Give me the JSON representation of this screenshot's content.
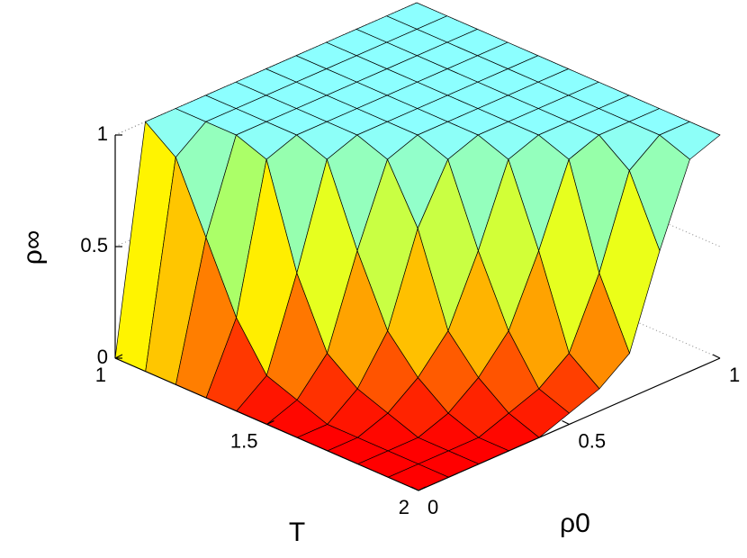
{
  "chart_data": {
    "type": "surface",
    "xlabel": "T",
    "ylabel": "ρ0",
    "zlabel": "ρ∞",
    "x": [
      1,
      1.1,
      1.2,
      1.3,
      1.4,
      1.5,
      1.6,
      1.7,
      1.8,
      1.9,
      2
    ],
    "y": [
      0,
      0.1,
      0.2,
      0.3,
      0.4,
      0.5,
      0.6,
      0.7,
      0.8,
      0.9,
      1
    ],
    "z": [
      [
        0,
        1,
        1,
        1,
        1,
        1,
        1,
        1,
        1,
        1,
        1
      ],
      [
        0,
        0.9,
        1,
        1,
        1,
        1,
        1,
        1,
        1,
        1,
        1
      ],
      [
        0,
        0.6,
        1,
        1,
        1,
        1,
        1,
        1,
        1,
        1,
        1
      ],
      [
        0,
        0.3,
        0.95,
        1,
        1,
        1,
        1,
        1,
        1,
        1,
        1
      ],
      [
        0,
        0.1,
        0.5,
        0.95,
        1,
        1,
        1,
        1,
        1,
        1,
        1
      ],
      [
        0,
        0.05,
        0.2,
        0.6,
        0.95,
        1,
        1,
        1,
        1,
        1,
        1
      ],
      [
        0,
        0,
        0.1,
        0.3,
        0.7,
        0.95,
        1,
        1,
        1,
        1,
        1
      ],
      [
        0,
        0,
        0.05,
        0.15,
        0.3,
        0.6,
        0.95,
        1,
        1,
        1,
        1
      ],
      [
        0,
        0,
        0,
        0.05,
        0.15,
        0.3,
        0.6,
        0.95,
        1,
        1,
        1
      ],
      [
        0,
        0,
        0,
        0,
        0.05,
        0.1,
        0.2,
        0.5,
        0.9,
        1,
        1
      ],
      [
        0,
        0,
        0,
        0,
        0,
        0.05,
        0.1,
        0.2,
        0.6,
        0.95,
        1
      ]
    ],
    "xlim": [
      1,
      2
    ],
    "xticks": [
      1,
      1.5,
      2
    ],
    "ylim": [
      0,
      1
    ],
    "yticks": [
      0,
      0.5,
      1
    ],
    "zlim": [
      0,
      1
    ],
    "zticks": [
      0,
      0.5,
      1
    ],
    "colormap": [
      "#ff0000",
      "#ff8c00",
      "#ffff00",
      "#9cff7a",
      "#8cffff"
    ],
    "grid": true
  }
}
